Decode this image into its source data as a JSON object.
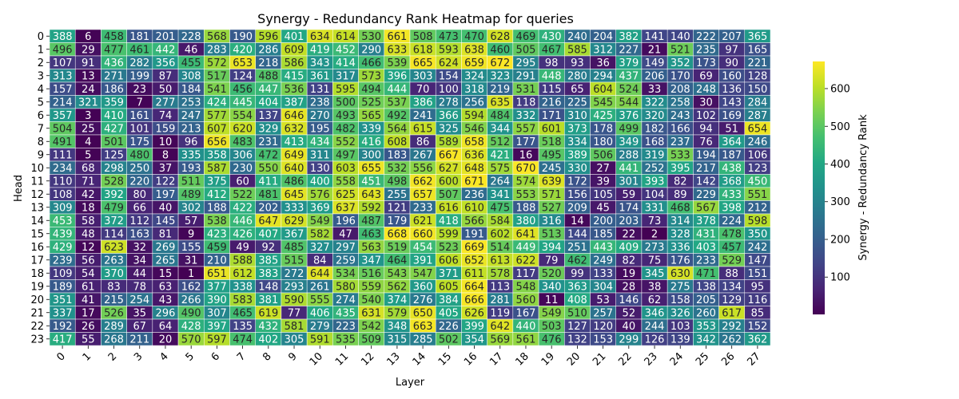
{
  "chart_data": {
    "type": "heatmap",
    "title": "Synergy - Redundancy Rank Heatmap for queries",
    "xlabel": "Layer",
    "ylabel": "Head",
    "colorbar_label": "Synergy - Redundancy Rank",
    "colormap": "viridis",
    "vmin": 1,
    "vmax": 672,
    "colorbar_ticks": [
      100,
      200,
      300,
      400,
      500,
      600
    ],
    "x": [
      "0",
      "1",
      "2",
      "3",
      "4",
      "5",
      "6",
      "7",
      "8",
      "9",
      "10",
      "11",
      "12",
      "13",
      "14",
      "15",
      "16",
      "17",
      "18",
      "19",
      "20",
      "21",
      "22",
      "23",
      "24",
      "25",
      "26",
      "27"
    ],
    "y": [
      "0",
      "1",
      "2",
      "3",
      "4",
      "5",
      "6",
      "7",
      "8",
      "9",
      "10",
      "11",
      "12",
      "13",
      "14",
      "15",
      "16",
      "17",
      "18",
      "19",
      "20",
      "21",
      "22",
      "23"
    ],
    "values": [
      [
        388,
        6,
        458,
        181,
        201,
        228,
        568,
        190,
        596,
        401,
        634,
        614,
        530,
        661,
        508,
        473,
        470,
        628,
        469,
        430,
        240,
        204,
        382,
        141,
        140,
        222,
        207,
        365
      ],
      [
        496,
        29,
        477,
        461,
        442,
        46,
        283,
        420,
        286,
        609,
        419,
        452,
        290,
        633,
        618,
        593,
        638,
        460,
        505,
        467,
        585,
        312,
        227,
        21,
        521,
        235,
        97,
        165
      ],
      [
        107,
        91,
        436,
        282,
        356,
        455,
        572,
        653,
        218,
        586,
        343,
        414,
        466,
        539,
        665,
        624,
        659,
        672,
        295,
        98,
        93,
        36,
        379,
        149,
        352,
        173,
        90,
        221
      ],
      [
        313,
        13,
        271,
        199,
        87,
        308,
        517,
        124,
        488,
        415,
        361,
        317,
        573,
        396,
        303,
        154,
        324,
        323,
        291,
        448,
        280,
        294,
        437,
        206,
        170,
        69,
        160,
        128
      ],
      [
        157,
        24,
        186,
        23,
        50,
        184,
        541,
        456,
        447,
        536,
        131,
        595,
        494,
        444,
        70,
        100,
        318,
        219,
        531,
        115,
        65,
        604,
        524,
        33,
        208,
        248,
        136,
        150
      ],
      [
        214,
        321,
        359,
        7,
        277,
        253,
        424,
        445,
        404,
        387,
        238,
        500,
        525,
        537,
        386,
        278,
        256,
        635,
        118,
        216,
        225,
        545,
        544,
        322,
        258,
        30,
        143,
        284
      ],
      [
        357,
        3,
        410,
        161,
        74,
        247,
        577,
        554,
        137,
        646,
        270,
        493,
        565,
        492,
        241,
        366,
        594,
        484,
        332,
        171,
        310,
        425,
        376,
        320,
        243,
        102,
        169,
        287
      ],
      [
        504,
        25,
        427,
        101,
        159,
        213,
        607,
        620,
        329,
        632,
        195,
        482,
        339,
        564,
        615,
        325,
        546,
        344,
        557,
        601,
        373,
        178,
        499,
        182,
        166,
        94,
        51,
        654
      ],
      [
        491,
        4,
        501,
        175,
        10,
        96,
        656,
        483,
        231,
        413,
        434,
        552,
        416,
        608,
        86,
        589,
        658,
        512,
        177,
        518,
        334,
        180,
        349,
        168,
        237,
        76,
        364,
        246
      ],
      [
        111,
        5,
        125,
        480,
        8,
        335,
        358,
        306,
        472,
        649,
        311,
        497,
        300,
        183,
        267,
        667,
        636,
        421,
        16,
        495,
        389,
        506,
        288,
        319,
        533,
        194,
        187,
        106
      ],
      [
        234,
        68,
        298,
        250,
        37,
        193,
        587,
        230,
        550,
        640,
        130,
        603,
        655,
        532,
        556,
        627,
        648,
        575,
        670,
        245,
        330,
        27,
        441,
        252,
        395,
        217,
        438,
        123
      ],
      [
        110,
        71,
        528,
        220,
        122,
        511,
        375,
        60,
        411,
        486,
        400,
        558,
        451,
        498,
        662,
        600,
        671,
        264,
        574,
        639,
        172,
        39,
        301,
        393,
        82,
        142,
        368,
        450
      ],
      [
        108,
        42,
        392,
        80,
        197,
        489,
        412,
        522,
        481,
        645,
        576,
        625,
        643,
        255,
        657,
        507,
        236,
        341,
        553,
        571,
        156,
        105,
        59,
        104,
        89,
        229,
        433,
        551
      ],
      [
        309,
        18,
        479,
        66,
        40,
        302,
        188,
        422,
        202,
        333,
        369,
        637,
        592,
        121,
        233,
        616,
        610,
        475,
        188,
        527,
        209,
        45,
        174,
        331,
        468,
        567,
        398,
        212
      ],
      [
        453,
        58,
        372,
        112,
        145,
        57,
        538,
        446,
        647,
        629,
        549,
        196,
        487,
        179,
        621,
        418,
        566,
        584,
        380,
        316,
        14,
        200,
        203,
        73,
        314,
        378,
        224,
        598
      ],
      [
        439,
        48,
        114,
        163,
        81,
        9,
        423,
        426,
        407,
        367,
        582,
        47,
        463,
        668,
        660,
        599,
        191,
        602,
        641,
        513,
        144,
        185,
        22,
        2,
        328,
        431,
        478,
        350
      ],
      [
        429,
        12,
        623,
        32,
        269,
        155,
        459,
        49,
        92,
        485,
        327,
        297,
        563,
        519,
        454,
        523,
        669,
        514,
        449,
        394,
        251,
        443,
        409,
        273,
        336,
        403,
        457,
        242
      ],
      [
        239,
        56,
        263,
        34,
        265,
        31,
        210,
        588,
        385,
        515,
        84,
        259,
        347,
        464,
        391,
        606,
        652,
        613,
        622,
        79,
        462,
        249,
        82,
        75,
        176,
        233,
        529,
        147
      ],
      [
        109,
        54,
        370,
        44,
        15,
        1,
        651,
        612,
        383,
        272,
        644,
        534,
        516,
        543,
        547,
        371,
        611,
        578,
        117,
        520,
        99,
        133,
        19,
        345,
        630,
        471,
        88,
        151
      ],
      [
        189,
        61,
        83,
        78,
        63,
        162,
        377,
        338,
        148,
        293,
        261,
        580,
        559,
        562,
        360,
        605,
        664,
        113,
        548,
        340,
        363,
        304,
        28,
        38,
        275,
        138,
        134,
        95
      ],
      [
        351,
        41,
        215,
        254,
        43,
        266,
        390,
        583,
        381,
        590,
        555,
        274,
        540,
        374,
        276,
        384,
        666,
        281,
        560,
        11,
        408,
        53,
        146,
        62,
        158,
        205,
        129,
        116
      ],
      [
        337,
        17,
        526,
        35,
        296,
        490,
        307,
        465,
        619,
        77,
        406,
        435,
        631,
        579,
        650,
        405,
        626,
        119,
        167,
        549,
        510,
        257,
        52,
        346,
        326,
        260,
        617,
        85
      ],
      [
        192,
        26,
        289,
        67,
        64,
        428,
        397,
        135,
        432,
        581,
        279,
        223,
        542,
        348,
        663,
        226,
        399,
        642,
        440,
        503,
        127,
        120,
        40,
        244,
        103,
        353,
        292,
        152
      ],
      [
        417,
        55,
        268,
        211,
        20,
        570,
        597,
        474,
        402,
        305,
        591,
        535,
        509,
        315,
        285,
        502,
        354,
        569,
        561,
        476,
        132,
        153,
        299,
        126,
        139,
        342,
        262,
        362
      ]
    ]
  }
}
